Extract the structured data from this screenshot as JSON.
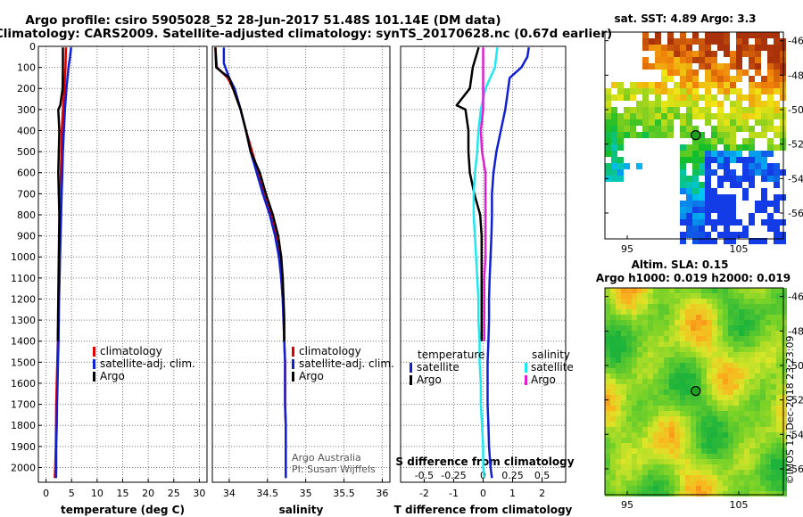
{
  "header": {
    "title_line1": "Argo profile: csiro 5905028_52 28-Jun-2017 51.48S 101.14E (DM data)",
    "title_line2": "Climatology: CARS2009. Satellite-adjusted climatology: synTS_20170628.nc (0.67d earlier)"
  },
  "colors": {
    "climatology": "#e00000",
    "satellite": "#1020d0",
    "argo": "#000000",
    "sat_salinity": "#20e8f0",
    "argo_salinity": "#e020d0",
    "float_marker": "#20a020",
    "grid": "#777777"
  },
  "chart_data": [
    {
      "type": "line",
      "title": "",
      "xlabel": "temperature (deg C)",
      "ylabel": "",
      "xlim": [
        -1.5,
        31.5
      ],
      "ylim": [
        2070,
        0
      ],
      "xticks": [
        0,
        5,
        10,
        15,
        20,
        25,
        30
      ],
      "xtick_labels": [
        "0",
        "5",
        "10",
        "15",
        "20",
        "25",
        "30"
      ],
      "ytick_labels": [
        "0",
        "100",
        "200",
        "300",
        "400",
        "500",
        "600",
        "700",
        "800",
        "900",
        "1000",
        "1100",
        "1200",
        "1300",
        "1400",
        "1500",
        "1600",
        "1700",
        "1800",
        "1900",
        "2000"
      ],
      "legend": [
        "climatology",
        "satellite-adj. clim.",
        "Argo"
      ],
      "series": [
        {
          "name": "climatology",
          "color_key": "climatology",
          "points": [
            [
              3.9,
              5
            ],
            [
              3.8,
              100
            ],
            [
              3.6,
              200
            ],
            [
              3.3,
              300
            ],
            [
              3.1,
              400
            ],
            [
              3.0,
              500
            ],
            [
              2.9,
              600
            ],
            [
              2.8,
              700
            ],
            [
              2.7,
              800
            ],
            [
              2.6,
              900
            ],
            [
              2.55,
              1000
            ],
            [
              2.5,
              1100
            ],
            [
              2.45,
              1200
            ],
            [
              2.4,
              1300
            ],
            [
              2.3,
              1400
            ],
            [
              2.2,
              1500
            ],
            [
              2.1,
              1600
            ],
            [
              2.0,
              1700
            ],
            [
              1.95,
              1800
            ],
            [
              1.9,
              1900
            ],
            [
              1.8,
              2000
            ],
            [
              1.7,
              2050
            ]
          ]
        },
        {
          "name": "satellite-adj. clim.",
          "color_key": "satellite",
          "points": [
            [
              4.9,
              5
            ],
            [
              4.7,
              50
            ],
            [
              4.4,
              100
            ],
            [
              4.0,
              200
            ],
            [
              3.7,
              300
            ],
            [
              3.5,
              400
            ],
            [
              3.3,
              500
            ],
            [
              3.2,
              600
            ],
            [
              3.05,
              700
            ],
            [
              2.95,
              800
            ],
            [
              2.85,
              900
            ],
            [
              2.75,
              1000
            ],
            [
              2.65,
              1100
            ],
            [
              2.55,
              1200
            ],
            [
              2.5,
              1300
            ],
            [
              2.45,
              1400
            ],
            [
              2.35,
              1500
            ],
            [
              2.25,
              1600
            ],
            [
              2.15,
              1700
            ],
            [
              2.1,
              1800
            ],
            [
              2.0,
              1900
            ],
            [
              2.0,
              2000
            ],
            [
              1.95,
              2050
            ]
          ]
        },
        {
          "name": "Argo",
          "color_key": "argo",
          "points": [
            [
              3.3,
              5
            ],
            [
              3.3,
              100
            ],
            [
              3.25,
              200
            ],
            [
              2.8,
              280
            ],
            [
              2.4,
              300
            ],
            [
              2.6,
              400
            ],
            [
              2.5,
              500
            ],
            [
              2.4,
              600
            ],
            [
              2.5,
              700
            ],
            [
              2.6,
              800
            ],
            [
              2.55,
              900
            ],
            [
              2.5,
              1000
            ],
            [
              2.45,
              1100
            ],
            [
              2.4,
              1200
            ],
            [
              2.35,
              1300
            ],
            [
              2.3,
              1400
            ]
          ]
        }
      ]
    },
    {
      "type": "line",
      "title": "",
      "xlabel": "salinity",
      "ylabel": "",
      "xlim": [
        33.78,
        36.1
      ],
      "ylim": [
        2070,
        0
      ],
      "xticks": [
        34,
        34.5,
        35,
        35.5,
        36
      ],
      "xtick_labels": [
        "34",
        "34.5",
        "35",
        "35.5",
        "36"
      ],
      "legend": [
        "climatology",
        "satellite-adj. clim.",
        "Argo"
      ],
      "annotations": [
        "Argo Australia",
        "PI: Susan Wijffels"
      ],
      "series": [
        {
          "name": "climatology",
          "color_key": "climatology",
          "points": [
            [
              33.82,
              5
            ],
            [
              33.84,
              100
            ],
            [
              33.98,
              150
            ],
            [
              34.05,
              200
            ],
            [
              34.15,
              300
            ],
            [
              34.22,
              400
            ],
            [
              34.3,
              500
            ],
            [
              34.38,
              600
            ],
            [
              34.45,
              700
            ],
            [
              34.55,
              800
            ],
            [
              34.62,
              900
            ],
            [
              34.66,
              1000
            ],
            [
              34.68,
              1100
            ],
            [
              34.7,
              1200
            ],
            [
              34.71,
              1300
            ],
            [
              34.72,
              1400
            ],
            [
              34.73,
              1500
            ],
            [
              34.73,
              1600
            ],
            [
              34.73,
              1700
            ],
            [
              34.74,
              1800
            ],
            [
              34.74,
              1900
            ],
            [
              34.74,
              2000
            ],
            [
              34.74,
              2050
            ]
          ]
        },
        {
          "name": "satellite-adj. clim.",
          "color_key": "satellite",
          "points": [
            [
              33.93,
              5
            ],
            [
              33.93,
              80
            ],
            [
              34.0,
              150
            ],
            [
              34.07,
              200
            ],
            [
              34.15,
              300
            ],
            [
              34.22,
              400
            ],
            [
              34.28,
              500
            ],
            [
              34.36,
              600
            ],
            [
              34.44,
              700
            ],
            [
              34.53,
              800
            ],
            [
              34.6,
              900
            ],
            [
              34.65,
              1000
            ],
            [
              34.68,
              1100
            ],
            [
              34.7,
              1200
            ],
            [
              34.71,
              1300
            ],
            [
              34.72,
              1400
            ],
            [
              34.73,
              1500
            ],
            [
              34.73,
              1600
            ],
            [
              34.73,
              1700
            ],
            [
              34.74,
              1800
            ],
            [
              34.74,
              1900
            ],
            [
              34.74,
              2000
            ],
            [
              34.74,
              2050
            ]
          ]
        },
        {
          "name": "Argo",
          "color_key": "argo",
          "points": [
            [
              33.82,
              5
            ],
            [
              33.83,
              100
            ],
            [
              34.0,
              150
            ],
            [
              34.05,
              200
            ],
            [
              34.15,
              300
            ],
            [
              34.22,
              400
            ],
            [
              34.28,
              500
            ],
            [
              34.4,
              600
            ],
            [
              34.48,
              700
            ],
            [
              34.57,
              800
            ],
            [
              34.64,
              900
            ],
            [
              34.68,
              1000
            ],
            [
              34.7,
              1100
            ],
            [
              34.71,
              1200
            ],
            [
              34.72,
              1300
            ],
            [
              34.72,
              1400
            ]
          ]
        }
      ]
    },
    {
      "type": "line",
      "title": "",
      "xlabel": "T difference from climatology",
      "x2label": "S difference from climatology",
      "ylabel": "",
      "xlim": [
        -2.8,
        2.8
      ],
      "x2lim": [
        -0.7,
        0.7
      ],
      "ylim": [
        2070,
        0
      ],
      "xticks": [
        -2,
        -1,
        0,
        1,
        2
      ],
      "xtick_labels": [
        "-2",
        "-1",
        "0",
        "1",
        "2"
      ],
      "x2ticks": [
        -0.5,
        -0.25,
        0,
        0.25,
        0.5
      ],
      "x2tick_labels": [
        "-0.5",
        "-0.25",
        "0",
        "0.25",
        "0.5"
      ],
      "legend_titles": [
        "temperature",
        "salinity"
      ],
      "legend": [
        "satellite",
        "Argo",
        "satellite",
        "Argo"
      ],
      "series": [
        {
          "name": "temperature satellite",
          "color_key": "satellite",
          "axis": "x",
          "points": [
            [
              1.55,
              5
            ],
            [
              1.5,
              50
            ],
            [
              1.3,
              100
            ],
            [
              0.9,
              150
            ],
            [
              0.85,
              200
            ],
            [
              0.75,
              300
            ],
            [
              0.6,
              400
            ],
            [
              0.45,
              500
            ],
            [
              0.35,
              600
            ],
            [
              0.3,
              700
            ],
            [
              0.3,
              800
            ],
            [
              0.28,
              900
            ],
            [
              0.25,
              1000
            ],
            [
              0.22,
              1100
            ],
            [
              0.2,
              1200
            ],
            [
              0.2,
              1300
            ],
            [
              0.18,
              1400
            ],
            [
              0.15,
              1500
            ],
            [
              0.15,
              1600
            ],
            [
              0.15,
              1700
            ],
            [
              0.18,
              1800
            ],
            [
              0.2,
              1900
            ],
            [
              0.25,
              2000
            ],
            [
              0.3,
              2050
            ]
          ]
        },
        {
          "name": "temperature Argo",
          "color_key": "argo",
          "axis": "x",
          "points": [
            [
              -0.15,
              5
            ],
            [
              -0.35,
              100
            ],
            [
              -0.45,
              200
            ],
            [
              -0.9,
              280
            ],
            [
              -0.6,
              300
            ],
            [
              -0.5,
              400
            ],
            [
              -0.5,
              500
            ],
            [
              -0.45,
              600
            ],
            [
              -0.3,
              700
            ],
            [
              -0.1,
              800
            ],
            [
              -0.05,
              900
            ],
            [
              -0.05,
              1000
            ],
            [
              -0.05,
              1100
            ],
            [
              -0.05,
              1200
            ],
            [
              -0.05,
              1300
            ],
            [
              -0.05,
              1400
            ]
          ]
        },
        {
          "name": "salinity satellite",
          "color_key": "sat_salinity",
          "axis": "x2",
          "points": [
            [
              0.12,
              5
            ],
            [
              0.1,
              100
            ],
            [
              0.02,
              200
            ],
            [
              -0.02,
              300
            ],
            [
              -0.04,
              400
            ],
            [
              -0.05,
              500
            ],
            [
              -0.07,
              600
            ],
            [
              -0.08,
              700
            ],
            [
              -0.08,
              800
            ],
            [
              -0.07,
              900
            ],
            [
              -0.06,
              1000
            ],
            [
              -0.05,
              1100
            ],
            [
              -0.04,
              1200
            ],
            [
              -0.04,
              1300
            ],
            [
              -0.03,
              1400
            ],
            [
              -0.03,
              1500
            ],
            [
              -0.02,
              1600
            ],
            [
              -0.02,
              1700
            ],
            [
              -0.01,
              1800
            ],
            [
              0.0,
              1900
            ],
            [
              0.0,
              2000
            ],
            [
              0.01,
              2050
            ]
          ]
        },
        {
          "name": "salinity Argo",
          "color_key": "argo_salinity",
          "axis": "x2",
          "points": [
            [
              0.0,
              5
            ],
            [
              0.0,
              100
            ],
            [
              0.0,
              200
            ],
            [
              0.0,
              300
            ],
            [
              -0.02,
              400
            ],
            [
              -0.01,
              500
            ],
            [
              0.02,
              600
            ],
            [
              0.02,
              700
            ],
            [
              0.02,
              800
            ],
            [
              0.02,
              900
            ],
            [
              0.02,
              1000
            ],
            [
              0.01,
              1100
            ],
            [
              0.01,
              1200
            ],
            [
              0.01,
              1300
            ],
            [
              0.01,
              1400
            ]
          ]
        }
      ]
    },
    {
      "type": "heatmap",
      "title": "sat. SST: 4.89 Argo: 3.3",
      "xlim": [
        93,
        109
      ],
      "ylim": [
        -57.5,
        -45.5
      ],
      "xticks": [
        95,
        105
      ],
      "xtick_labels": [
        "95",
        "105"
      ],
      "yticks": [
        -46,
        -48,
        -50,
        -52,
        -54,
        -56
      ],
      "ytick_labels": [
        "-46",
        "-48",
        "-50",
        "-52",
        "-54",
        "-56"
      ],
      "marker": {
        "lon": 101.14,
        "lat": -51.48
      }
    },
    {
      "type": "heatmap",
      "title": "Altim. SLA: 0.15",
      "subtitle": "Argo h1000: 0.019 h2000: 0.019",
      "xlim": [
        93,
        109
      ],
      "ylim": [
        -57.5,
        -45.5
      ],
      "xticks": [
        95,
        105
      ],
      "xtick_labels": [
        "95",
        "105"
      ],
      "yticks": [
        -46,
        -48,
        -50,
        -52,
        -54,
        -56
      ],
      "ytick_labels": [
        "-46",
        "-48",
        "-50",
        "-52",
        "-54",
        "-56"
      ],
      "marker": {
        "lon": 101.14,
        "lat": -51.48
      }
    }
  ],
  "credit": "©IMOS 12-Dec-2018 23:23:09"
}
